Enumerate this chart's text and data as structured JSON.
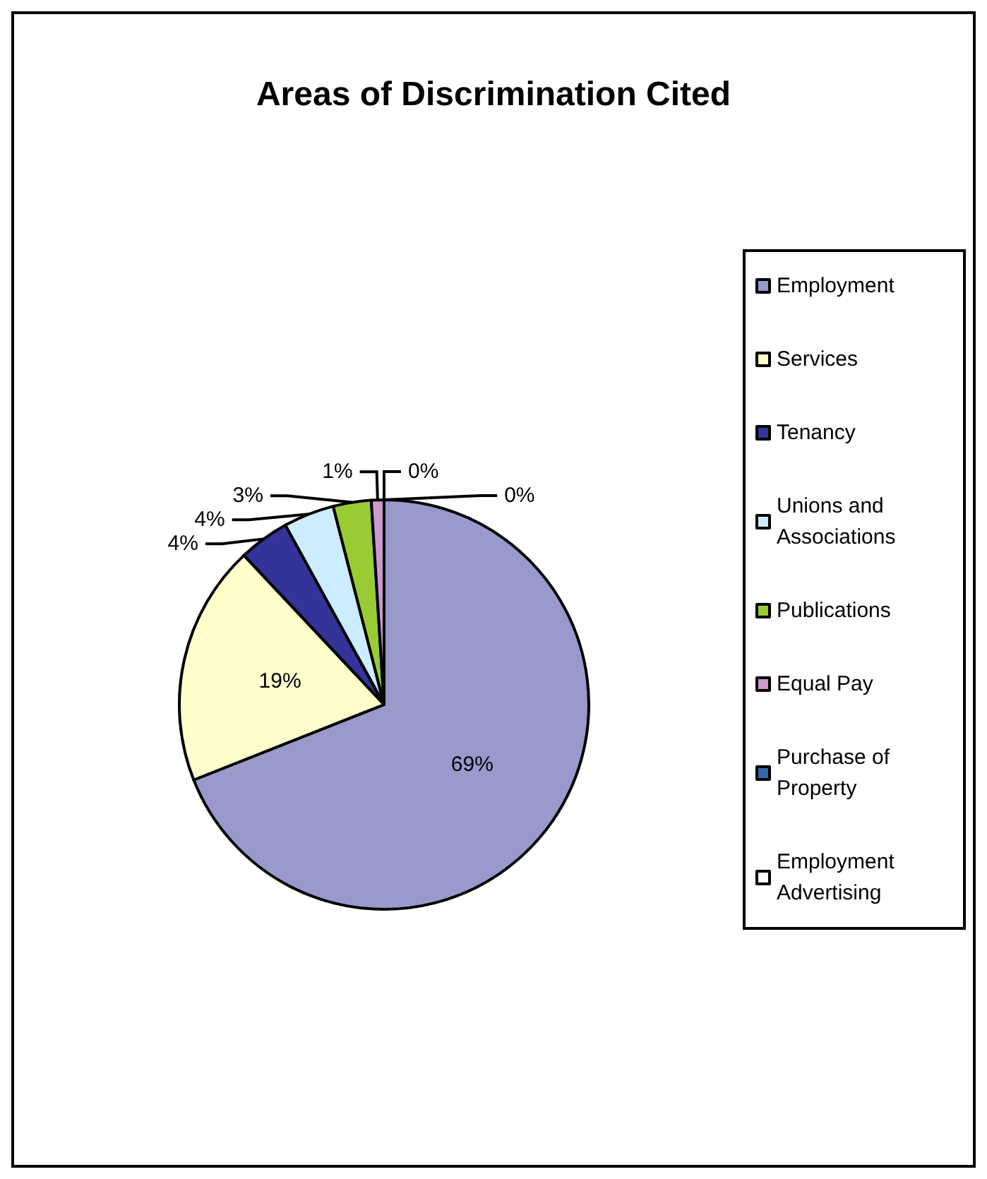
{
  "chart_data": {
    "type": "pie",
    "title": "Areas of Discrimination Cited",
    "categories": [
      "Employment",
      "Services",
      "Tenancy",
      "Unions and Associations",
      "Publications",
      "Equal Pay",
      "Purchase of Property",
      "Employment Advertising"
    ],
    "values": [
      69,
      19,
      4,
      4,
      3,
      1,
      0,
      0
    ],
    "colors": [
      "#9999cc",
      "#ffffcc",
      "#333399",
      "#ccecff",
      "#99cc33",
      "#cc99cc",
      "#3366aa",
      "#ffffff"
    ],
    "value_labels": [
      "69%",
      "19%",
      "4%",
      "4%",
      "3%",
      "1%",
      "0%",
      "0%"
    ],
    "legend": "right"
  }
}
